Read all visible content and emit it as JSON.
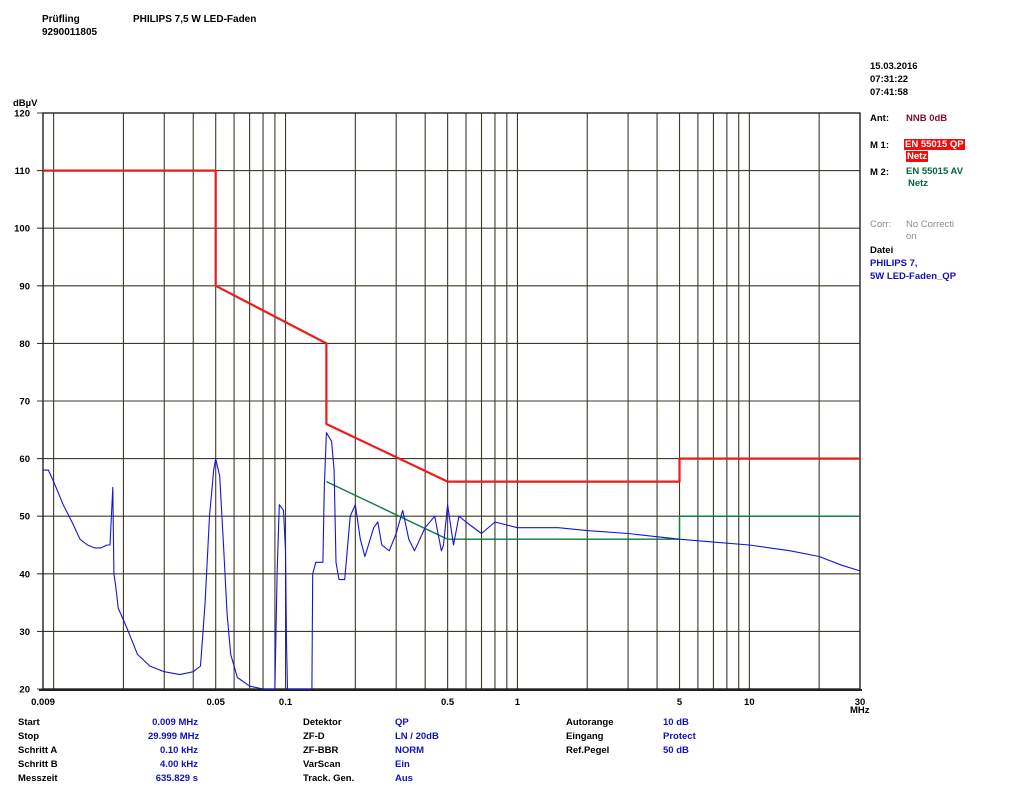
{
  "header": {
    "pruefling_label": "Prüfling",
    "pruefling_id": "9290011805",
    "product": "PHILIPS 7,5 W LED-Faden",
    "date": "15.03.2016",
    "time_start": "07:31:22",
    "time_end": "07:41:58"
  },
  "sidebar": {
    "ant_label": "Ant:",
    "ant_value": "NNB 0dB",
    "m1_label": "M 1:",
    "m1_value": "EN 55015 QP",
    "m1_value2": "Netz",
    "m2_label": "M 2:",
    "m2_value": "EN 55015 AV",
    "m2_value2": "Netz",
    "corr_label": "Corr:",
    "corr_value": "No Correcti",
    "corr_value2": "on",
    "datei_label": "Datei",
    "datei_value": "PHILIPS 7,",
    "datei_value2": "5W LED-Faden_QP"
  },
  "settings": {
    "col1": [
      {
        "label": "Start",
        "value": "0.009 MHz"
      },
      {
        "label": "Stop",
        "value": "29.999 MHz"
      },
      {
        "label": "Schritt A",
        "value": "0.10 kHz"
      },
      {
        "label": "Schritt B",
        "value": "4.00 kHz"
      },
      {
        "label": "Messzeit",
        "value": "635.829 s"
      }
    ],
    "col2": [
      {
        "label": "Detektor",
        "value": "QP"
      },
      {
        "label": "ZF-D",
        "value": "LN / 20dB"
      },
      {
        "label": "ZF-BBR",
        "value": "NORM"
      },
      {
        "label": "VarScan",
        "value": "Ein"
      },
      {
        "label": "Track. Gen.",
        "value": "Aus"
      }
    ],
    "col3": [
      {
        "label": "Autorange",
        "value": "10 dB"
      },
      {
        "label": "Eingang",
        "value": "Protect"
      },
      {
        "label": "Ref.Pegel",
        "value": "50 dB"
      }
    ]
  },
  "chart_data": {
    "type": "line",
    "ylabel": "dBµV",
    "xunit": "MHz",
    "xscale": "log",
    "xlim": [
      0.009,
      30
    ],
    "ylim": [
      20,
      120
    ],
    "yticks": [
      20,
      30,
      40,
      50,
      60,
      70,
      80,
      90,
      100,
      110,
      120
    ],
    "xtick_labels": [
      {
        "v": 0.009,
        "t": "0.009"
      },
      {
        "v": 0.05,
        "t": "0.05"
      },
      {
        "v": 0.1,
        "t": "0.1"
      },
      {
        "v": 0.5,
        "t": "0.5"
      },
      {
        "v": 1,
        "t": "1"
      },
      {
        "v": 5,
        "t": "5"
      },
      {
        "v": 10,
        "t": "10"
      },
      {
        "v": 30,
        "t": "30"
      }
    ],
    "grid": true,
    "colors": {
      "measurement": "#1515d8",
      "qp_limit": "#ee1b1b",
      "av_limit": "#0a7d3c",
      "grid": "#3e3a28"
    },
    "series": [
      {
        "name": "EN 55015 QP",
        "points": [
          [
            0.009,
            110
          ],
          [
            0.05,
            110
          ],
          [
            0.05,
            90
          ],
          [
            0.15,
            80
          ],
          [
            0.15,
            66
          ],
          [
            0.5,
            56
          ],
          [
            5,
            56
          ],
          [
            5,
            60
          ],
          [
            30,
            60
          ]
        ]
      },
      {
        "name": "EN 55015 AV",
        "points": [
          [
            0.15,
            56
          ],
          [
            0.5,
            46
          ],
          [
            5,
            46
          ],
          [
            5,
            50
          ],
          [
            30,
            50
          ]
        ]
      },
      {
        "name": "Measurement",
        "points": [
          [
            0.009,
            58
          ],
          [
            0.0095,
            58
          ],
          [
            0.01,
            56
          ],
          [
            0.011,
            52
          ],
          [
            0.012,
            49
          ],
          [
            0.013,
            46
          ],
          [
            0.014,
            45
          ],
          [
            0.015,
            44.5
          ],
          [
            0.016,
            44.5
          ],
          [
            0.017,
            45
          ],
          [
            0.0175,
            45
          ],
          [
            0.018,
            55
          ],
          [
            0.0182,
            40
          ],
          [
            0.0185,
            38
          ],
          [
            0.019,
            34
          ],
          [
            0.02,
            32
          ],
          [
            0.021,
            30
          ],
          [
            0.023,
            26
          ],
          [
            0.026,
            24
          ],
          [
            0.03,
            23
          ],
          [
            0.035,
            22.5
          ],
          [
            0.04,
            23
          ],
          [
            0.043,
            24
          ],
          [
            0.045,
            35
          ],
          [
            0.047,
            50
          ],
          [
            0.049,
            58
          ],
          [
            0.05,
            60
          ],
          [
            0.052,
            57
          ],
          [
            0.054,
            45
          ],
          [
            0.056,
            33
          ],
          [
            0.058,
            26
          ],
          [
            0.062,
            22
          ],
          [
            0.07,
            20.5
          ],
          [
            0.08,
            20
          ],
          [
            0.09,
            20
          ],
          [
            0.092,
            40
          ],
          [
            0.094,
            52
          ],
          [
            0.098,
            51
          ],
          [
            0.1,
            44
          ],
          [
            0.101,
            28
          ],
          [
            0.102,
            20
          ],
          [
            0.12,
            20
          ],
          [
            0.13,
            20
          ],
          [
            0.131,
            40
          ],
          [
            0.135,
            42
          ],
          [
            0.14,
            42
          ],
          [
            0.145,
            42
          ],
          [
            0.147,
            55
          ],
          [
            0.15,
            64.5
          ],
          [
            0.158,
            63
          ],
          [
            0.162,
            58
          ],
          [
            0.165,
            42
          ],
          [
            0.17,
            39
          ],
          [
            0.18,
            39
          ],
          [
            0.19,
            50
          ],
          [
            0.2,
            52
          ],
          [
            0.21,
            46
          ],
          [
            0.22,
            43
          ],
          [
            0.24,
            48
          ],
          [
            0.25,
            49
          ],
          [
            0.26,
            45
          ],
          [
            0.28,
            44
          ],
          [
            0.3,
            47
          ],
          [
            0.32,
            51
          ],
          [
            0.34,
            46
          ],
          [
            0.36,
            44
          ],
          [
            0.4,
            48
          ],
          [
            0.44,
            50
          ],
          [
            0.47,
            44
          ],
          [
            0.48,
            45
          ],
          [
            0.5,
            52
          ],
          [
            0.53,
            45
          ],
          [
            0.56,
            50
          ],
          [
            0.6,
            49
          ],
          [
            0.7,
            47
          ],
          [
            0.8,
            49
          ],
          [
            1,
            48
          ],
          [
            1.5,
            48
          ],
          [
            2,
            47.5
          ],
          [
            3,
            47
          ],
          [
            5,
            46
          ],
          [
            7,
            45.5
          ],
          [
            10,
            45
          ],
          [
            15,
            44
          ],
          [
            20,
            43
          ],
          [
            25,
            41.5
          ],
          [
            30,
            40.5
          ]
        ]
      }
    ]
  }
}
